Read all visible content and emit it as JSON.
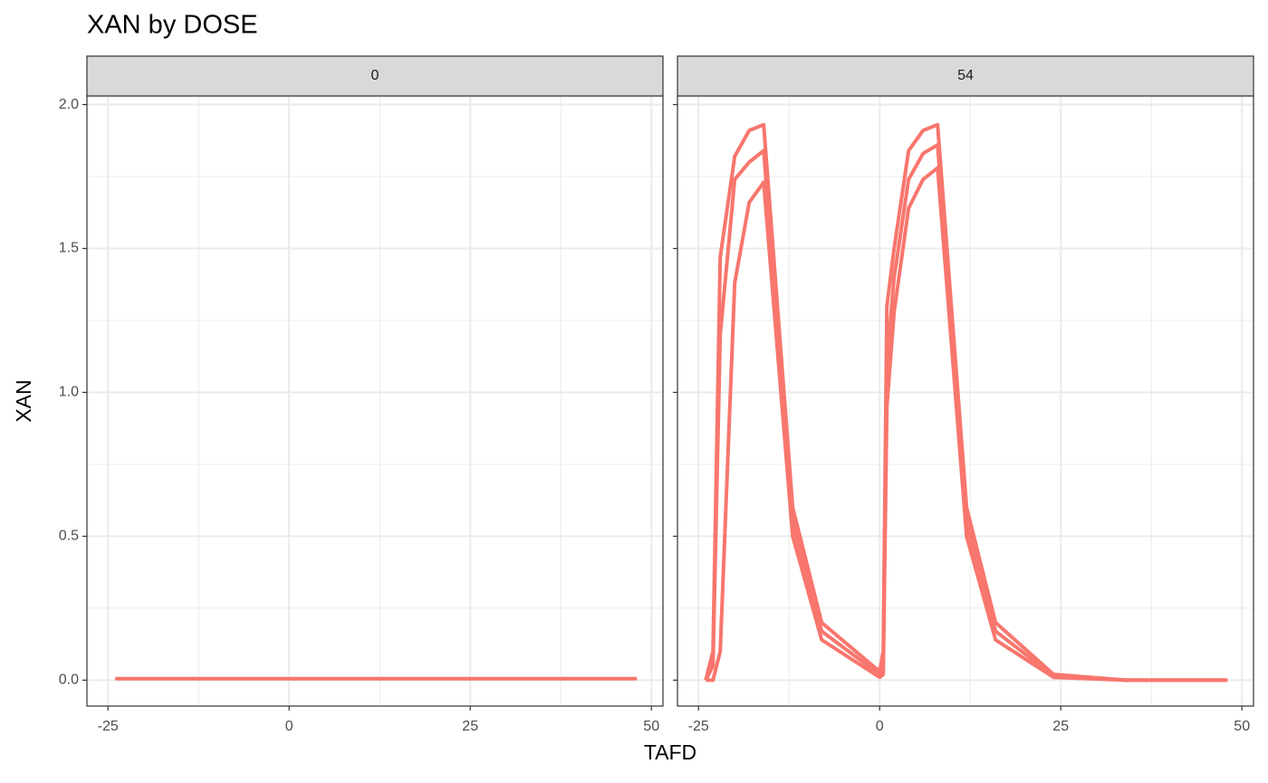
{
  "title": "XAN by DOSE",
  "x_label": "TAFD",
  "y_label": "XAN",
  "chart_data": [
    {
      "type": "line",
      "facet": "0",
      "x": [
        -24,
        48
      ],
      "series": [
        {
          "color": "#f8766d",
          "values": [
            0.005,
            0.005
          ]
        }
      ],
      "xlim": [
        -27.9,
        51.6
      ],
      "xticks": [
        -25,
        0,
        25,
        50
      ],
      "x_minor_ticks": [
        -12.5,
        12.5,
        37.5
      ],
      "ylim": [
        -0.09,
        2.03
      ],
      "yticks": [
        {
          "value": 0,
          "label": "0.0"
        },
        {
          "value": 0.5,
          "label": "0.5"
        },
        {
          "value": 1,
          "label": "1.0"
        },
        {
          "value": 1.5,
          "label": "1.5"
        },
        {
          "value": 2,
          "label": "2.0"
        }
      ],
      "y_minor_ticks": [
        0.25,
        0.75,
        1.25,
        1.75
      ],
      "grid": true
    },
    {
      "type": "line",
      "facet": "54",
      "x": [
        -24,
        -23,
        -22,
        -20,
        -18,
        -16,
        -12,
        -8,
        0,
        0.5,
        1,
        2,
        4,
        6,
        8,
        12,
        16,
        24,
        34,
        48
      ],
      "series": [
        {
          "color": "#f8766d",
          "values": [
            0,
            0.1,
            1.47,
            1.82,
            1.91,
            1.93,
            0.6,
            0.2,
            0.03,
            0.1,
            1.3,
            1.5,
            1.84,
            1.91,
            1.93,
            0.6,
            0.2,
            0.02,
            0,
            0
          ]
        },
        {
          "color": "#f8766d",
          "values": [
            0,
            0.05,
            1.2,
            1.74,
            1.8,
            1.84,
            0.55,
            0.17,
            0.02,
            0.05,
            1.1,
            1.4,
            1.74,
            1.83,
            1.86,
            0.55,
            0.17,
            0.015,
            0,
            0
          ]
        },
        {
          "color": "#f8766d",
          "values": [
            0,
            0,
            0.1,
            1.38,
            1.66,
            1.73,
            0.5,
            0.14,
            0.01,
            0.02,
            0.95,
            1.28,
            1.64,
            1.74,
            1.78,
            0.5,
            0.14,
            0.01,
            0,
            0
          ]
        }
      ],
      "xlim": [
        -27.9,
        51.6
      ],
      "xticks": [
        -25,
        0,
        25,
        50
      ],
      "x_minor_ticks": [
        -12.5,
        12.5,
        37.5
      ],
      "ylim": [
        -0.09,
        2.03
      ],
      "yticks": [
        0,
        0.5,
        1,
        1.5,
        2
      ],
      "y_minor_ticks": [
        0.25,
        0.75,
        1.25,
        1.75
      ],
      "grid": true
    }
  ]
}
